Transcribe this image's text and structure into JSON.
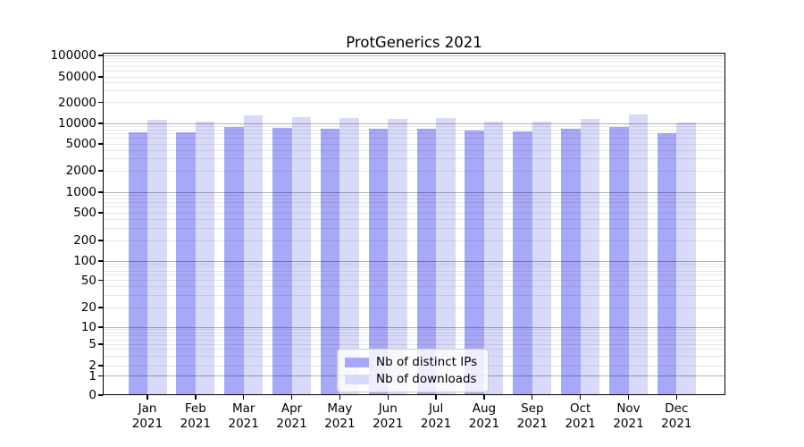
{
  "chart_data": {
    "type": "bar",
    "title": "ProtGenerics 2021",
    "xlabel": "",
    "ylabel": "",
    "yscale": "symlog",
    "ylim": [
      0,
      100000
    ],
    "yticks": [
      0,
      1,
      2,
      5,
      10,
      20,
      50,
      100,
      200,
      500,
      1000,
      2000,
      5000,
      10000,
      20000,
      50000,
      100000
    ],
    "grid": "horizontal major and minor gridlines, grid visible over semi-transparent bars",
    "categories": [
      "Jan 2021",
      "Feb 2021",
      "Mar 2021",
      "Apr 2021",
      "May 2021",
      "Jun 2021",
      "Jul 2021",
      "Aug 2021",
      "Sep 2021",
      "Oct 2021",
      "Nov 2021",
      "Dec 2021"
    ],
    "series": [
      {
        "name": "Nb of distinct IPs",
        "color": "#a8a8f8",
        "values": [
          7500,
          7300,
          8900,
          8600,
          8400,
          8400,
          8400,
          7900,
          7700,
          8300,
          8900,
          7200
        ]
      },
      {
        "name": "Nb of downloads",
        "color": "#d9d9fa",
        "values": [
          11100,
          10700,
          13200,
          12400,
          12000,
          11600,
          11900,
          10600,
          10500,
          11600,
          13300,
          10300
        ]
      }
    ],
    "legend": {
      "position": "lower center inside plot",
      "entries": [
        "Nb of distinct IPs",
        "Nb of downloads"
      ]
    },
    "colors": {
      "background": "#ffffff",
      "spine": "#000000",
      "major_gridline": "#b3b3b3",
      "minor_gridline": "#ececec"
    }
  }
}
